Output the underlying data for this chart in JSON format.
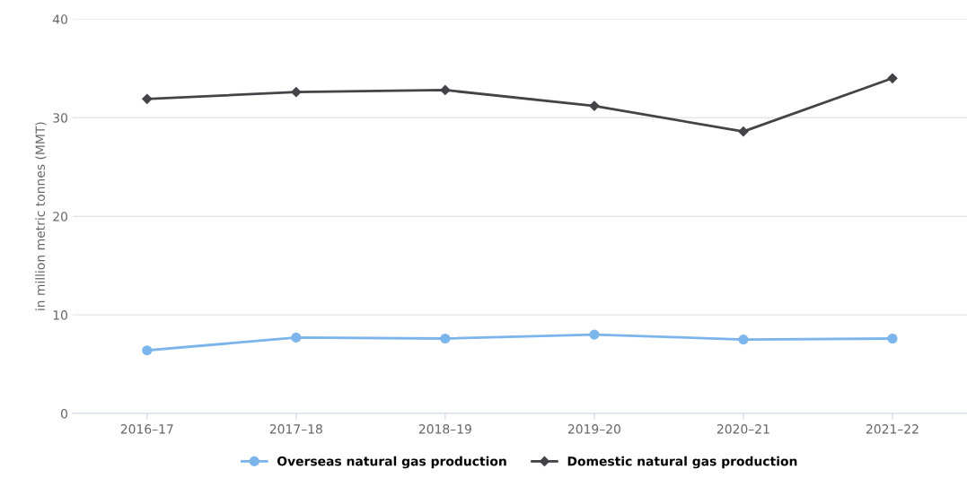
{
  "chart_data": {
    "type": "line",
    "ylabel": "in million metric tonnes (MMT)",
    "categories": [
      "2016–17",
      "2017–18",
      "2018–19",
      "2019–20",
      "2020–21",
      "2021–22"
    ],
    "series": [
      {
        "name": "Overseas natural gas production",
        "color": "#7cb5ec",
        "marker": "circle",
        "values": [
          6.4,
          7.7,
          7.6,
          8.0,
          7.5,
          7.6
        ]
      },
      {
        "name": "Domestic natural gas production",
        "color": "#434348",
        "marker": "diamond",
        "values": [
          31.9,
          32.6,
          32.8,
          31.2,
          28.6,
          34.0
        ]
      }
    ],
    "ylim": [
      0,
      40
    ],
    "yticks": [
      0,
      10,
      20,
      30,
      40
    ],
    "grid": "y",
    "legend": "bottom"
  }
}
